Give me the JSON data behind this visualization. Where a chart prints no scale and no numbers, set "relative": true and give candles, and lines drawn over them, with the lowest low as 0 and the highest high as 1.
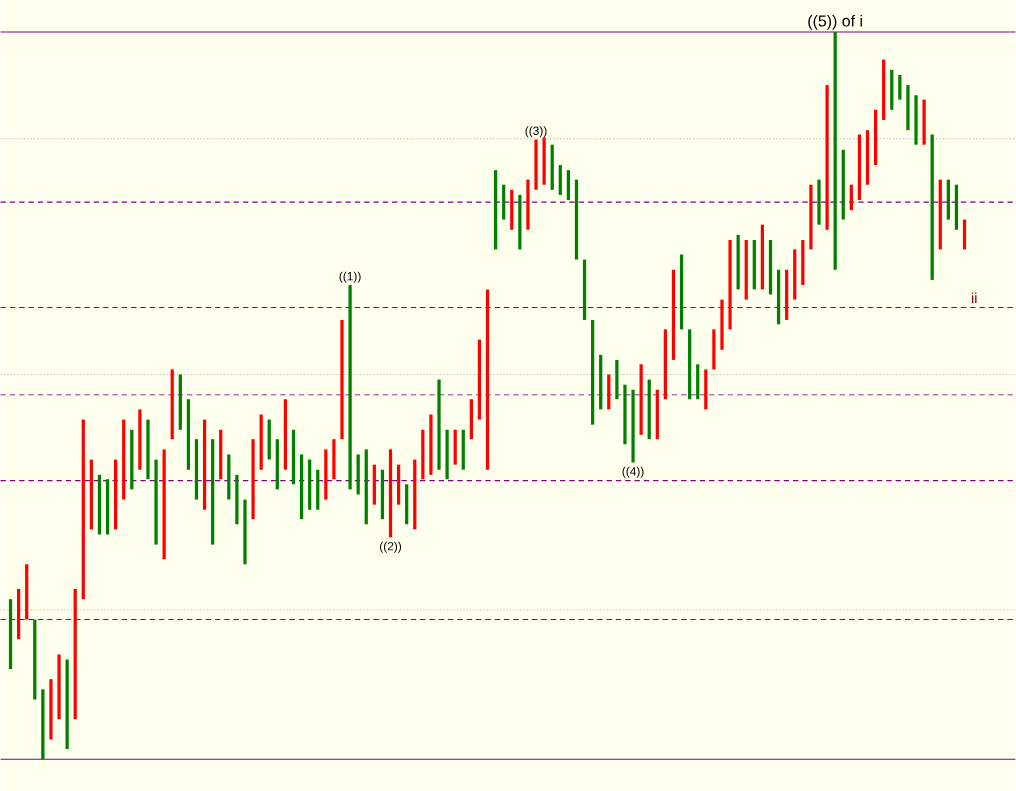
{
  "chart_data": {
    "type": "candlestick",
    "relative": true,
    "categories": [
      null,
      null,
      null,
      null,
      null,
      null,
      null,
      null,
      null,
      null,
      null,
      null,
      null,
      null,
      null,
      null,
      null,
      null,
      null,
      null,
      null,
      null,
      null,
      null,
      null,
      null,
      null,
      null,
      null,
      null,
      null,
      null,
      null,
      null,
      null,
      null,
      null,
      null,
      null,
      null,
      null,
      null,
      null,
      null,
      null,
      null,
      null,
      null,
      null,
      null,
      null,
      null,
      null,
      null,
      null,
      null,
      null,
      null,
      null,
      null,
      null,
      null,
      null,
      null,
      null,
      null,
      null,
      null,
      null,
      null,
      null,
      null,
      null,
      null,
      null,
      null,
      null,
      null,
      null,
      null,
      null,
      null,
      null,
      null,
      null,
      null,
      null,
      null,
      null,
      null,
      null,
      null,
      null,
      null,
      null,
      null,
      null,
      null,
      null,
      null,
      null,
      null,
      null,
      null,
      null,
      null,
      null,
      null,
      null,
      null,
      null,
      null,
      null,
      null,
      null,
      null,
      null,
      null,
      null
    ],
    "ohlc": [
      [
        0.22,
        0.22,
        0.124,
        0.124
      ],
      [
        0.165,
        0.234,
        0.165,
        0.234
      ],
      [
        0.192,
        0.268,
        0.192,
        0.268
      ],
      [
        0.192,
        0.192,
        0.082,
        0.082
      ],
      [
        0.096,
        0.096,
        0.0,
        0.0
      ],
      [
        0.027,
        0.11,
        0.027,
        0.11
      ],
      [
        0.055,
        0.144,
        0.055,
        0.144
      ],
      [
        0.137,
        0.137,
        0.014,
        0.014
      ],
      [
        0.055,
        0.234,
        0.055,
        0.234
      ],
      [
        0.22,
        0.467,
        0.22,
        0.467
      ],
      [
        0.316,
        0.412,
        0.316,
        0.412
      ],
      [
        0.391,
        0.391,
        0.309,
        0.309
      ],
      [
        0.385,
        0.385,
        0.309,
        0.309
      ],
      [
        0.316,
        0.412,
        0.316,
        0.412
      ],
      [
        0.357,
        0.467,
        0.357,
        0.467
      ],
      [
        0.453,
        0.453,
        0.371,
        0.371
      ],
      [
        0.398,
        0.481,
        0.398,
        0.481
      ],
      [
        0.467,
        0.467,
        0.385,
        0.385
      ],
      [
        0.412,
        0.412,
        0.295,
        0.295
      ],
      [
        0.275,
        0.426,
        0.275,
        0.426
      ],
      [
        0.44,
        0.536,
        0.44,
        0.536
      ],
      [
        0.529,
        0.529,
        0.453,
        0.453
      ],
      [
        0.495,
        0.495,
        0.398,
        0.398
      ],
      [
        0.44,
        0.44,
        0.357,
        0.357
      ],
      [
        0.343,
        0.467,
        0.343,
        0.467
      ],
      [
        0.44,
        0.44,
        0.295,
        0.295
      ],
      [
        0.385,
        0.453,
        0.385,
        0.453
      ],
      [
        0.419,
        0.419,
        0.357,
        0.357
      ],
      [
        0.391,
        0.391,
        0.323,
        0.323
      ],
      [
        0.357,
        0.357,
        0.268,
        0.268
      ],
      [
        0.33,
        0.44,
        0.33,
        0.44
      ],
      [
        0.398,
        0.474,
        0.398,
        0.474
      ],
      [
        0.467,
        0.467,
        0.412,
        0.412
      ],
      [
        0.44,
        0.44,
        0.371,
        0.371
      ],
      [
        0.398,
        0.495,
        0.398,
        0.495
      ],
      [
        0.453,
        0.453,
        0.378,
        0.378
      ],
      [
        0.419,
        0.419,
        0.33,
        0.33
      ],
      [
        0.412,
        0.412,
        0.343,
        0.343
      ],
      [
        0.398,
        0.398,
        0.343,
        0.343
      ],
      [
        0.357,
        0.426,
        0.357,
        0.426
      ],
      [
        0.385,
        0.44,
        0.385,
        0.44
      ],
      [
        0.44,
        0.604,
        0.44,
        0.604
      ],
      [
        0.652,
        0.652,
        0.371,
        0.371
      ],
      [
        0.419,
        0.419,
        0.364,
        0.364
      ],
      [
        0.426,
        0.426,
        0.323,
        0.323
      ],
      [
        0.35,
        0.405,
        0.35,
        0.405
      ],
      [
        0.398,
        0.398,
        0.33,
        0.33
      ],
      [
        0.305,
        0.426,
        0.305,
        0.426
      ],
      [
        0.35,
        0.405,
        0.35,
        0.405
      ],
      [
        0.378,
        0.378,
        0.323,
        0.323
      ],
      [
        0.316,
        0.412,
        0.316,
        0.412
      ],
      [
        0.385,
        0.453,
        0.385,
        0.453
      ],
      [
        0.391,
        0.474,
        0.391,
        0.474
      ],
      [
        0.522,
        0.522,
        0.398,
        0.398
      ],
      [
        0.453,
        0.453,
        0.385,
        0.385
      ],
      [
        0.405,
        0.453,
        0.405,
        0.453
      ],
      [
        0.453,
        0.453,
        0.398,
        0.398
      ],
      [
        0.44,
        0.495,
        0.44,
        0.495
      ],
      [
        0.467,
        0.577,
        0.467,
        0.577
      ],
      [
        0.398,
        0.646,
        0.398,
        0.646
      ],
      [
        0.81,
        0.81,
        0.701,
        0.701
      ],
      [
        0.79,
        0.79,
        0.742,
        0.742
      ],
      [
        0.728,
        0.783,
        0.728,
        0.783
      ],
      [
        0.776,
        0.776,
        0.701,
        0.701
      ],
      [
        0.728,
        0.797,
        0.728,
        0.797
      ],
      [
        0.783,
        0.852,
        0.783,
        0.852
      ],
      [
        0.79,
        0.855,
        0.79,
        0.855
      ],
      [
        0.845,
        0.845,
        0.783,
        0.783
      ],
      [
        0.817,
        0.817,
        0.776,
        0.776
      ],
      [
        0.81,
        0.81,
        0.769,
        0.769
      ],
      [
        0.797,
        0.797,
        0.687,
        0.687
      ],
      [
        0.687,
        0.687,
        0.604,
        0.604
      ],
      [
        0.604,
        0.604,
        0.46,
        0.46
      ],
      [
        0.556,
        0.556,
        0.481,
        0.481
      ],
      [
        0.481,
        0.529,
        0.481,
        0.529
      ],
      [
        0.549,
        0.549,
        0.495,
        0.495
      ],
      [
        0.515,
        0.515,
        0.433,
        0.433
      ],
      [
        0.508,
        0.508,
        0.408,
        0.408
      ],
      [
        0.446,
        0.543,
        0.446,
        0.543
      ],
      [
        0.522,
        0.522,
        0.44,
        0.44
      ],
      [
        0.44,
        0.508,
        0.44,
        0.508
      ],
      [
        0.495,
        0.591,
        0.495,
        0.591
      ],
      [
        0.549,
        0.673,
        0.549,
        0.673
      ],
      [
        0.694,
        0.694,
        0.591,
        0.591
      ],
      [
        0.591,
        0.591,
        0.495,
        0.495
      ],
      [
        0.543,
        0.543,
        0.495,
        0.495
      ],
      [
        0.481,
        0.536,
        0.481,
        0.536
      ],
      [
        0.536,
        0.591,
        0.536,
        0.591
      ],
      [
        0.563,
        0.632,
        0.563,
        0.632
      ],
      [
        0.591,
        0.714,
        0.591,
        0.714
      ],
      [
        0.721,
        0.721,
        0.646,
        0.646
      ],
      [
        0.632,
        0.714,
        0.632,
        0.714
      ],
      [
        0.714,
        0.714,
        0.646,
        0.646
      ],
      [
        0.646,
        0.735,
        0.646,
        0.735
      ],
      [
        0.714,
        0.714,
        0.639,
        0.639
      ],
      [
        0.673,
        0.673,
        0.598,
        0.598
      ],
      [
        0.604,
        0.673,
        0.604,
        0.673
      ],
      [
        0.632,
        0.701,
        0.632,
        0.701
      ],
      [
        0.652,
        0.714,
        0.652,
        0.714
      ],
      [
        0.701,
        0.79,
        0.701,
        0.79
      ],
      [
        0.797,
        0.797,
        0.735,
        0.735
      ],
      [
        0.728,
        0.927,
        0.728,
        0.927
      ],
      [
        1.0,
        1.0,
        0.673,
        0.673
      ],
      [
        0.838,
        0.838,
        0.742,
        0.742
      ],
      [
        0.755,
        0.79,
        0.755,
        0.79
      ],
      [
        0.769,
        0.859,
        0.769,
        0.859
      ],
      [
        0.79,
        0.865,
        0.79,
        0.865
      ],
      [
        0.817,
        0.893,
        0.817,
        0.893
      ],
      [
        0.879,
        0.962,
        0.879,
        0.962
      ],
      [
        0.948,
        0.948,
        0.893,
        0.893
      ],
      [
        0.941,
        0.941,
        0.907,
        0.907
      ],
      [
        0.927,
        0.927,
        0.865,
        0.865
      ],
      [
        0.913,
        0.913,
        0.845,
        0.845
      ],
      [
        0.845,
        0.907,
        0.845,
        0.907
      ],
      [
        0.859,
        0.859,
        0.659,
        0.659
      ],
      [
        0.701,
        0.797,
        0.701,
        0.797
      ],
      [
        0.797,
        0.797,
        0.742,
        0.742
      ],
      [
        0.79,
        0.79,
        0.728,
        0.728
      ],
      [
        0.701,
        0.742,
        0.701,
        0.742
      ]
    ],
    "ref_lines": [
      {
        "axis": "y",
        "value": 1.0,
        "color": "#800080",
        "line_style": "solid"
      },
      {
        "axis": "y",
        "value": 0.853,
        "color": "#c0c0c0",
        "line_style": "dotted"
      },
      {
        "axis": "y",
        "value": 0.766,
        "color": "#800080",
        "line_style": "dashed"
      },
      {
        "axis": "y",
        "value": 0.621,
        "color": "#800080",
        "line_style": "dashed"
      },
      {
        "axis": "y",
        "value": 0.529,
        "color": "#c0c0c0",
        "line_style": "dotted"
      },
      {
        "axis": "y",
        "value": 0.501,
        "color": "#800080",
        "line_style": "dashed"
      },
      {
        "axis": "y",
        "value": 0.383,
        "color": "#800080",
        "line_style": "dashed"
      },
      {
        "axis": "y",
        "value": 0.205,
        "color": "#c0c0c0",
        "line_style": "dotted"
      },
      {
        "axis": "y",
        "value": 0.192,
        "color": "#800080",
        "line_style": "dashed"
      },
      {
        "axis": "y",
        "value": 0.0,
        "color": "#800080",
        "line_style": "solid"
      }
    ],
    "annotations": [
      {
        "text": "((1))",
        "y": 0.652
      },
      {
        "text": "((2))",
        "y": 0.305
      },
      {
        "text": "((3))",
        "y": 0.852
      },
      {
        "text": "((4))",
        "y": 0.408
      },
      {
        "text": "((5)) of i",
        "y": 1.0
      },
      "ii"
    ]
  }
}
